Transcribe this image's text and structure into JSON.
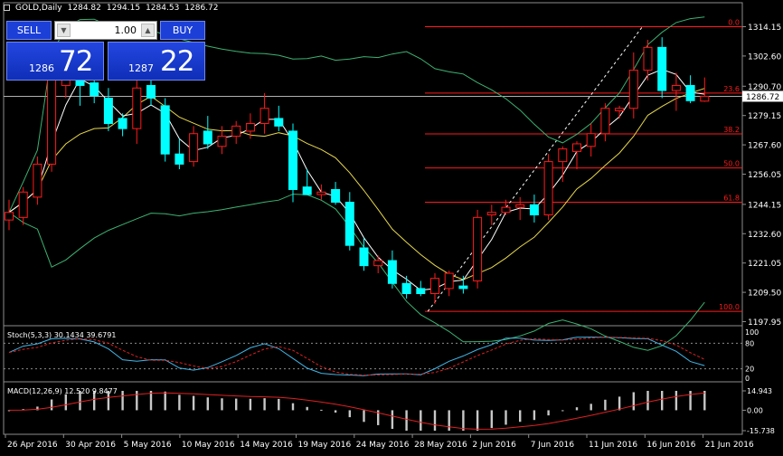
{
  "header": {
    "symbol": "GOLD,Daily",
    "open": "1284.82",
    "high": "1294.15",
    "low": "1284.53",
    "close": "1286.72"
  },
  "trade_panel": {
    "sell_label": "SELL",
    "buy_label": "BUY",
    "volume": "1.00",
    "sell_price_small": "1286",
    "sell_price_big": "72",
    "buy_price_small": "1287",
    "buy_price_big": "22"
  },
  "chart_data": {
    "type": "candlestick",
    "symbol": "GOLD",
    "timeframe": "Daily",
    "price_axis": {
      "min": 1197.95,
      "max": 1314.15,
      "labels": [
        "1314.15",
        "1302.60",
        "1290.70",
        "1279.15",
        "1267.60",
        "1256.05",
        "1244.15",
        "1232.60",
        "1221.05",
        "1209.50",
        "1197.95"
      ]
    },
    "current_price": "1286.72",
    "date_labels": [
      "26 Apr 2016",
      "30 Apr 2016",
      "5 May 2016",
      "10 May 2016",
      "14 May 2016",
      "19 May 2016",
      "24 May 2016",
      "28 May 2016",
      "2 Jun 2016",
      "7 Jun 2016",
      "11 Jun 2016",
      "16 Jun 2016",
      "21 Jun 2016"
    ],
    "candles": [
      {
        "o": 1238,
        "h": 1246,
        "l": 1234,
        "c": 1241
      },
      {
        "o": 1239,
        "h": 1251,
        "l": 1236,
        "c": 1249
      },
      {
        "o": 1247,
        "h": 1263,
        "l": 1244,
        "c": 1260
      },
      {
        "o": 1260,
        "h": 1300,
        "l": 1257,
        "c": 1296
      },
      {
        "o": 1291,
        "h": 1298,
        "l": 1286,
        "c": 1294
      },
      {
        "o": 1293,
        "h": 1297,
        "l": 1283,
        "c": 1291
      },
      {
        "o": 1292,
        "h": 1303,
        "l": 1284,
        "c": 1287
      },
      {
        "o": 1286,
        "h": 1290,
        "l": 1273,
        "c": 1276
      },
      {
        "o": 1278,
        "h": 1280,
        "l": 1271,
        "c": 1274
      },
      {
        "o": 1274,
        "h": 1293,
        "l": 1268,
        "c": 1290
      },
      {
        "o": 1291,
        "h": 1296,
        "l": 1283,
        "c": 1286
      },
      {
        "o": 1283,
        "h": 1286,
        "l": 1261,
        "c": 1264
      },
      {
        "o": 1264,
        "h": 1270,
        "l": 1258,
        "c": 1260
      },
      {
        "o": 1261,
        "h": 1275,
        "l": 1259,
        "c": 1272
      },
      {
        "o": 1273,
        "h": 1279,
        "l": 1266,
        "c": 1268
      },
      {
        "o": 1267,
        "h": 1275,
        "l": 1264,
        "c": 1271
      },
      {
        "o": 1271,
        "h": 1277,
        "l": 1268,
        "c": 1275
      },
      {
        "o": 1273,
        "h": 1280,
        "l": 1270,
        "c": 1276
      },
      {
        "o": 1276,
        "h": 1288,
        "l": 1272,
        "c": 1282
      },
      {
        "o": 1278,
        "h": 1283,
        "l": 1273,
        "c": 1275
      },
      {
        "o": 1273,
        "h": 1276,
        "l": 1245,
        "c": 1250
      },
      {
        "o": 1251,
        "h": 1258,
        "l": 1248,
        "c": 1248
      },
      {
        "o": 1248,
        "h": 1252,
        "l": 1246,
        "c": 1249
      },
      {
        "o": 1250,
        "h": 1253,
        "l": 1244,
        "c": 1245
      },
      {
        "o": 1245,
        "h": 1249,
        "l": 1226,
        "c": 1228
      },
      {
        "o": 1227,
        "h": 1231,
        "l": 1218,
        "c": 1220
      },
      {
        "o": 1220,
        "h": 1224,
        "l": 1217,
        "c": 1222
      },
      {
        "o": 1222,
        "h": 1226,
        "l": 1211,
        "c": 1213
      },
      {
        "o": 1213,
        "h": 1216,
        "l": 1207,
        "c": 1209
      },
      {
        "o": 1211,
        "h": 1214,
        "l": 1208,
        "c": 1209
      },
      {
        "o": 1209,
        "h": 1217,
        "l": 1205,
        "c": 1215
      },
      {
        "o": 1211,
        "h": 1218,
        "l": 1208,
        "c": 1217
      },
      {
        "o": 1212,
        "h": 1216,
        "l": 1209,
        "c": 1211
      },
      {
        "o": 1214,
        "h": 1242,
        "l": 1211,
        "c": 1239
      },
      {
        "o": 1240,
        "h": 1244,
        "l": 1236,
        "c": 1241
      },
      {
        "o": 1241,
        "h": 1246,
        "l": 1240,
        "c": 1243
      },
      {
        "o": 1243,
        "h": 1247,
        "l": 1238,
        "c": 1244
      },
      {
        "o": 1244,
        "h": 1248,
        "l": 1237,
        "c": 1240
      },
      {
        "o": 1240,
        "h": 1264,
        "l": 1238,
        "c": 1261
      },
      {
        "o": 1261,
        "h": 1267,
        "l": 1253,
        "c": 1266
      },
      {
        "o": 1265,
        "h": 1269,
        "l": 1258,
        "c": 1268
      },
      {
        "o": 1267,
        "h": 1276,
        "l": 1263,
        "c": 1272
      },
      {
        "o": 1272,
        "h": 1284,
        "l": 1269,
        "c": 1282
      },
      {
        "o": 1281,
        "h": 1283,
        "l": 1278,
        "c": 1282
      },
      {
        "o": 1282,
        "h": 1304,
        "l": 1278,
        "c": 1297
      },
      {
        "o": 1297,
        "h": 1309,
        "l": 1293,
        "c": 1306
      },
      {
        "o": 1306,
        "h": 1310,
        "l": 1286,
        "c": 1289
      },
      {
        "o": 1289,
        "h": 1296,
        "l": 1281,
        "c": 1291
      },
      {
        "o": 1291,
        "h": 1295,
        "l": 1284,
        "c": 1285
      },
      {
        "o": 1284.82,
        "h": 1294.15,
        "l": 1284.53,
        "c": 1286.72
      }
    ],
    "fibonacci": {
      "levels": [
        "0.0",
        "23.6",
        "38.2",
        "50.0",
        "61.8",
        "100.0"
      ]
    },
    "stochastic": {
      "label": "Stoch(5,3,3) 30.1434 39.6791",
      "levels": [
        "80",
        "20"
      ]
    },
    "macd": {
      "label": "MACD(12,26,9) 12.520 9.8477",
      "levels": [
        "14.943",
        "0.00",
        "-15.738"
      ]
    },
    "colors": {
      "bull": "#ff1a1a",
      "bear": "#00ffff",
      "fib": "#ff1a1a",
      "ma_fast": "#ffffff",
      "ma_slow": "#e8d84a",
      "bands": "#3cb371",
      "stoch_main": "#41b6e6",
      "stoch_signal": "#e02020",
      "macd_hist": "#c8c8c8",
      "macd_signal": "#e02020",
      "grid": "#8c8c8c",
      "price_line": "#b0b0b0"
    }
  }
}
